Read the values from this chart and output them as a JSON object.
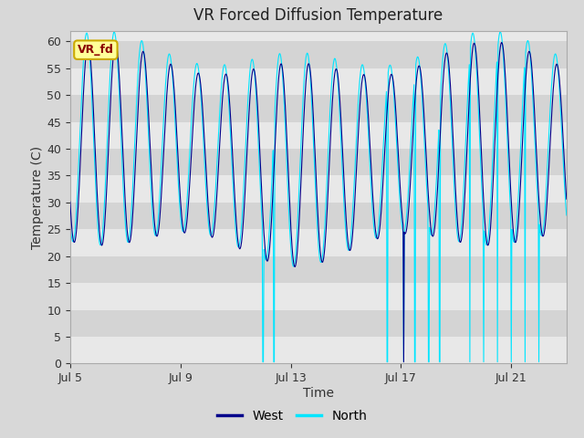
{
  "title": "VR Forced Diffusion Temperature",
  "xlabel": "Time",
  "ylabel": "Temperature (C)",
  "ylim": [
    0,
    62
  ],
  "yticks": [
    0,
    5,
    10,
    15,
    20,
    25,
    30,
    35,
    40,
    45,
    50,
    55,
    60
  ],
  "annotation_text": "VR_fd",
  "annotation_bg": "#ffff99",
  "annotation_text_color": "#8b0000",
  "legend_west_color": "#00008b",
  "legend_north_color": "#00e5ff",
  "west_color": "#00008b",
  "north_color": "#00e5ff",
  "fig_bg": "#d8d8d8",
  "band_colors": [
    "#e8e8e8",
    "#d4d4d4"
  ],
  "xtick_labels": [
    "Jul 5",
    "Jul 9",
    "Jul 13",
    "Jul 17",
    "Jul 21"
  ],
  "xtick_days_offset": [
    0,
    4,
    8,
    12,
    16
  ]
}
